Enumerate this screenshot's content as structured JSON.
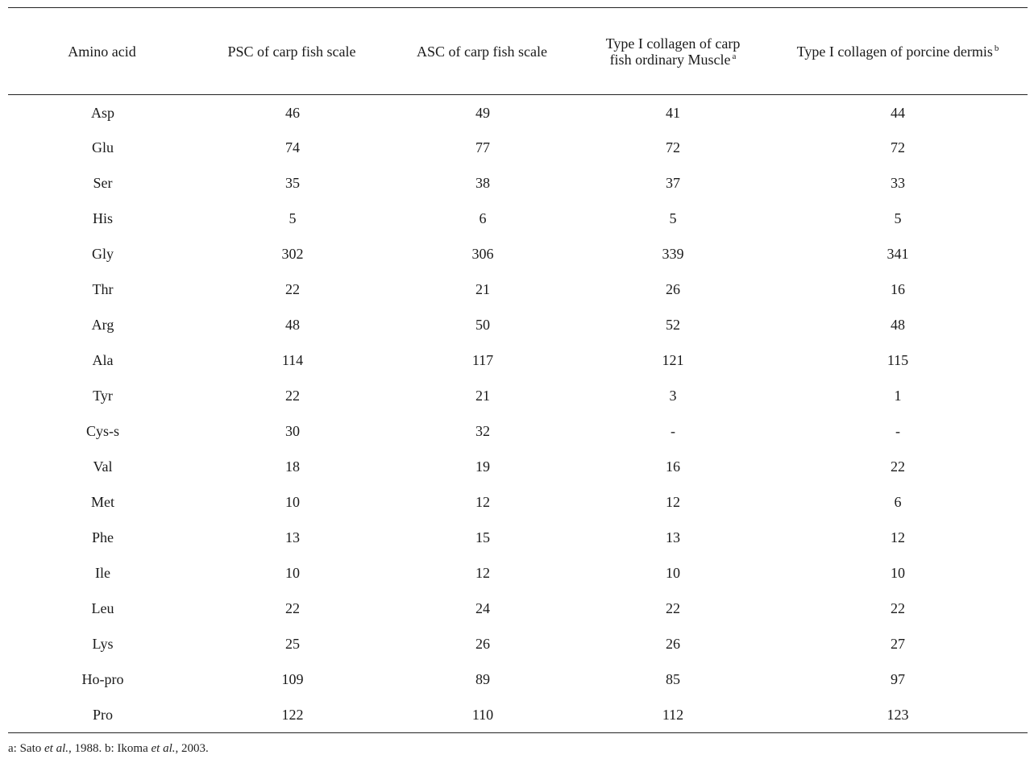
{
  "table": {
    "headers": [
      {
        "text": "Amino acid",
        "sup": ""
      },
      {
        "text": "PSC of carp fish scale",
        "sup": ""
      },
      {
        "text": "ASC of carp fish scale",
        "sup": ""
      },
      {
        "text": "Type I collagen of carp fish ordinary Muscle",
        "sup": "a"
      },
      {
        "text": "Type I collagen of porcine dermis",
        "sup": "b"
      }
    ],
    "rows": [
      [
        "Asp",
        "46",
        "49",
        "41",
        "44"
      ],
      [
        "Glu",
        "74",
        "77",
        "72",
        "72"
      ],
      [
        "Ser",
        "35",
        "38",
        "37",
        "33"
      ],
      [
        "His",
        "5",
        "6",
        "5",
        "5"
      ],
      [
        "Gly",
        "302",
        "306",
        "339",
        "341"
      ],
      [
        "Thr",
        "22",
        "21",
        "26",
        "16"
      ],
      [
        "Arg",
        "48",
        "50",
        "52",
        "48"
      ],
      [
        "Ala",
        "114",
        "117",
        "121",
        "115"
      ],
      [
        "Tyr",
        "22",
        "21",
        "3",
        "1"
      ],
      [
        "Cys-s",
        "30",
        "32",
        "-",
        "-"
      ],
      [
        "Val",
        "18",
        "19",
        "16",
        "22"
      ],
      [
        "Met",
        "10",
        "12",
        "12",
        "6"
      ],
      [
        "Phe",
        "13",
        "15",
        "13",
        "12"
      ],
      [
        "Ile",
        "10",
        "12",
        "10",
        "10"
      ],
      [
        "Leu",
        "22",
        "24",
        "22",
        "22"
      ],
      [
        "Lys",
        "25",
        "26",
        "26",
        "27"
      ],
      [
        "Ho-pro",
        "109",
        "89",
        "85",
        "97"
      ],
      [
        "Pro",
        "122",
        "110",
        "112",
        "123"
      ]
    ]
  },
  "footnote": {
    "a_prefix": "a: Sato ",
    "a_etal": "et al.",
    "a_year": ", 1988. ",
    "b_prefix": "b: Ikoma ",
    "b_etal": "et al.",
    "b_year": ", 2003."
  }
}
